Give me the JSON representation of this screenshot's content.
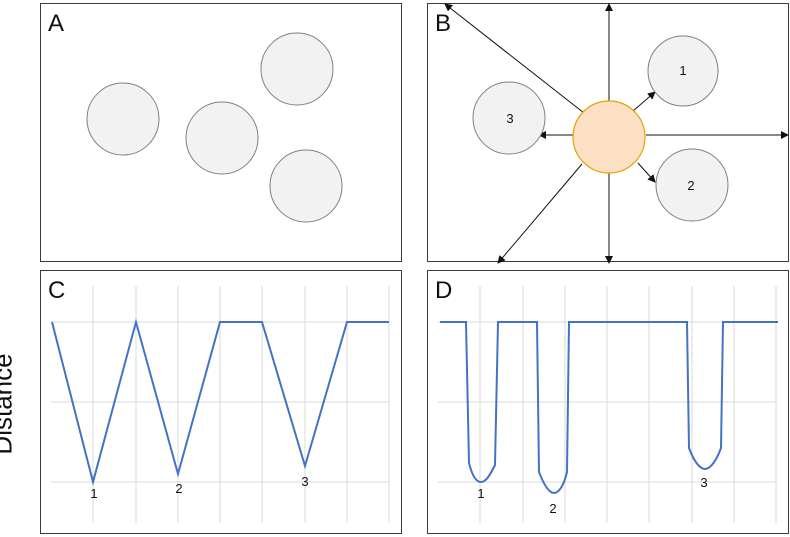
{
  "panels": {
    "a": {
      "letter": "A"
    },
    "b": {
      "letter": "B",
      "circle_labels": [
        "1",
        "2",
        "3"
      ]
    },
    "c": {
      "letter": "C"
    },
    "d": {
      "letter": "D"
    }
  },
  "y_axis_label": "Distance",
  "colors": {
    "circle_fill": "#f2f2f2",
    "circle_stroke": "#808080",
    "center_fill": "#fde0c4",
    "center_stroke": "#e3a300",
    "line": "#4472c4",
    "grid": "#d9d9d9"
  },
  "chart_data": [
    {
      "type": "line",
      "panel": "C",
      "dip_labels": [
        "1",
        "2",
        "3"
      ]
    },
    {
      "type": "line",
      "panel": "D",
      "dip_labels": [
        "1",
        "2",
        "3"
      ]
    }
  ]
}
